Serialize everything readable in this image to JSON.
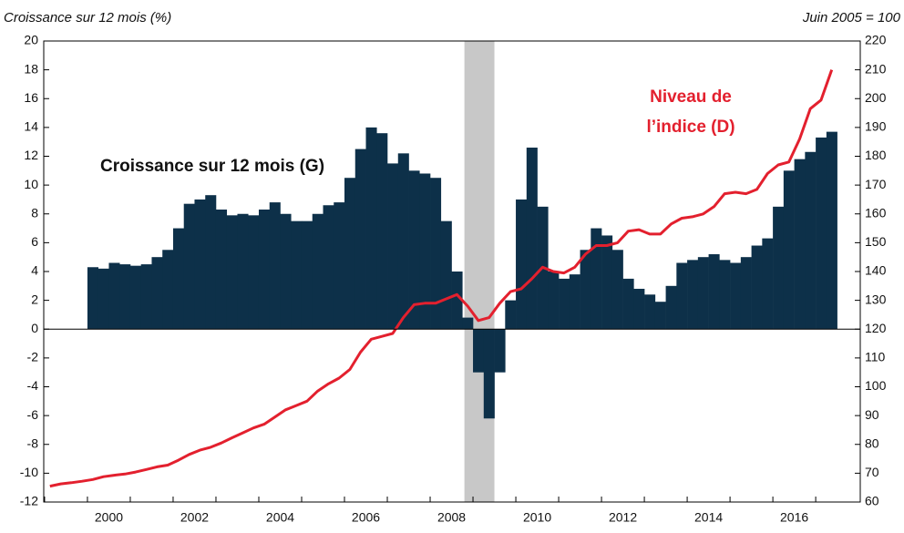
{
  "chart_data": {
    "type": "bar",
    "title": "Croissance sur  12 mois (%)",
    "y2_title": "Juin 2005 = 100",
    "xlim": [
      1998.98,
      2018.04
    ],
    "xticks": [
      {
        "value": 2000.5,
        "label": "2000"
      },
      {
        "value": 2002.5,
        "label": "2002"
      },
      {
        "value": 2004.5,
        "label": "2004"
      },
      {
        "value": 2006.5,
        "label": "2006"
      },
      {
        "value": 2008.5,
        "label": "2008"
      },
      {
        "value": 2010.5,
        "label": "2010"
      },
      {
        "value": 2012.5,
        "label": "2012"
      },
      {
        "value": 2014.5,
        "label": "2014"
      },
      {
        "value": 2016.5,
        "label": "2016"
      }
    ],
    "xticks_minor": [
      1999,
      2000,
      2001,
      2002,
      2003,
      2004,
      2005,
      2006,
      2007,
      2008,
      2009,
      2010,
      2011,
      2012,
      2013,
      2014,
      2015,
      2016,
      2017
    ],
    "ylim": [
      -12,
      20
    ],
    "yticks": [
      -12,
      -10,
      -8,
      -6,
      -4,
      -2,
      0,
      2,
      4,
      6,
      8,
      10,
      12,
      14,
      16,
      18,
      20
    ],
    "y2lim": [
      60,
      220
    ],
    "y2ticks": [
      60,
      70,
      80,
      90,
      100,
      110,
      120,
      130,
      140,
      150,
      160,
      170,
      180,
      190,
      200,
      210,
      220
    ],
    "shaded_period": [
      2008.8,
      2009.5
    ],
    "series": [
      {
        "name": "Croissance sur 12 mois (G)",
        "type": "bar",
        "color": "#0d3049",
        "x": [
          2000.125,
          2000.375,
          2000.625,
          2000.875,
          2001.125,
          2001.375,
          2001.625,
          2001.875,
          2002.125,
          2002.375,
          2002.625,
          2002.875,
          2003.125,
          2003.375,
          2003.625,
          2003.875,
          2004.125,
          2004.375,
          2004.625,
          2004.875,
          2005.125,
          2005.375,
          2005.625,
          2005.875,
          2006.125,
          2006.375,
          2006.625,
          2006.875,
          2007.125,
          2007.375,
          2007.625,
          2007.875,
          2008.125,
          2008.375,
          2008.625,
          2008.875,
          2009.125,
          2009.375,
          2009.625,
          2009.875,
          2010.125,
          2010.375,
          2010.625,
          2010.875,
          2011.125,
          2011.375,
          2011.625,
          2011.875,
          2012.125,
          2012.375,
          2012.625,
          2012.875,
          2013.125,
          2013.375,
          2013.625,
          2013.875,
          2014.125,
          2014.375,
          2014.625,
          2014.875,
          2015.125,
          2015.375,
          2015.625,
          2015.875,
          2016.125,
          2016.375,
          2016.625,
          2016.875,
          2017.125,
          2017.375
        ],
        "values": [
          4.3,
          4.2,
          4.6,
          4.5,
          4.4,
          4.5,
          5.0,
          5.5,
          7.0,
          8.7,
          9.0,
          9.3,
          8.3,
          7.9,
          8.0,
          7.9,
          8.3,
          8.8,
          8.0,
          7.5,
          7.5,
          8.0,
          8.6,
          8.8,
          10.5,
          12.5,
          14.0,
          13.6,
          11.5,
          12.2,
          11.0,
          10.8,
          10.5,
          7.5,
          4.0,
          0.8,
          -3.0,
          -6.2,
          -3.0,
          2.0,
          9.0,
          12.6,
          8.5,
          4.0,
          3.5,
          3.8,
          5.5,
          7.0,
          6.5,
          5.5,
          3.5,
          2.8,
          2.4,
          1.9,
          3.0,
          4.6,
          4.8,
          5.0,
          5.2,
          4.8,
          4.6,
          5.0,
          5.8,
          6.3,
          8.5,
          11.0,
          11.8,
          12.3,
          13.3,
          13.7
        ]
      },
      {
        "name": "Niveau de l’indice (D)",
        "type": "line",
        "axis": "y2",
        "color": "#e3202e",
        "x": [
          1999.125,
          1999.375,
          1999.625,
          1999.875,
          2000.125,
          2000.375,
          2000.625,
          2000.875,
          2001.125,
          2001.375,
          2001.625,
          2001.875,
          2002.125,
          2002.375,
          2002.625,
          2002.875,
          2003.125,
          2003.375,
          2003.625,
          2003.875,
          2004.125,
          2004.375,
          2004.625,
          2004.875,
          2005.125,
          2005.375,
          2005.625,
          2005.875,
          2006.125,
          2006.375,
          2006.625,
          2006.875,
          2007.125,
          2007.375,
          2007.625,
          2007.875,
          2008.125,
          2008.375,
          2008.625,
          2008.875,
          2009.125,
          2009.375,
          2009.625,
          2009.875,
          2010.125,
          2010.375,
          2010.625,
          2010.875,
          2011.125,
          2011.375,
          2011.625,
          2011.875,
          2012.125,
          2012.375,
          2012.625,
          2012.875,
          2013.125,
          2013.375,
          2013.625,
          2013.875,
          2014.125,
          2014.375,
          2014.625,
          2014.875,
          2015.125,
          2015.375,
          2015.625,
          2015.875,
          2016.125,
          2016.375,
          2016.625,
          2016.875,
          2017.125,
          2017.375
        ],
        "values": [
          65.5,
          66.3,
          66.7,
          67.2,
          67.8,
          68.8,
          69.3,
          69.7,
          70.4,
          71.3,
          72.2,
          72.8,
          74.5,
          76.5,
          78.0,
          79.0,
          80.5,
          82.3,
          84.0,
          85.7,
          87.0,
          89.5,
          92.0,
          93.5,
          95.0,
          98.5,
          101.0,
          103.0,
          106.0,
          112.0,
          116.5,
          117.5,
          118.5,
          124.0,
          128.5,
          129.0,
          129.0,
          130.5,
          132.0,
          128.0,
          123.0,
          124.0,
          129.0,
          133.0,
          134.0,
          137.5,
          141.5,
          140.0,
          139.5,
          141.5,
          146.0,
          149.0,
          149.0,
          150.0,
          154.0,
          154.5,
          153.0,
          153.0,
          156.5,
          158.5,
          159.0,
          160.0,
          162.5,
          167.0,
          167.5,
          167.0,
          168.5,
          174.0,
          177.0,
          178.0,
          186.0,
          196.5,
          199.5,
          210.0
        ]
      }
    ]
  }
}
